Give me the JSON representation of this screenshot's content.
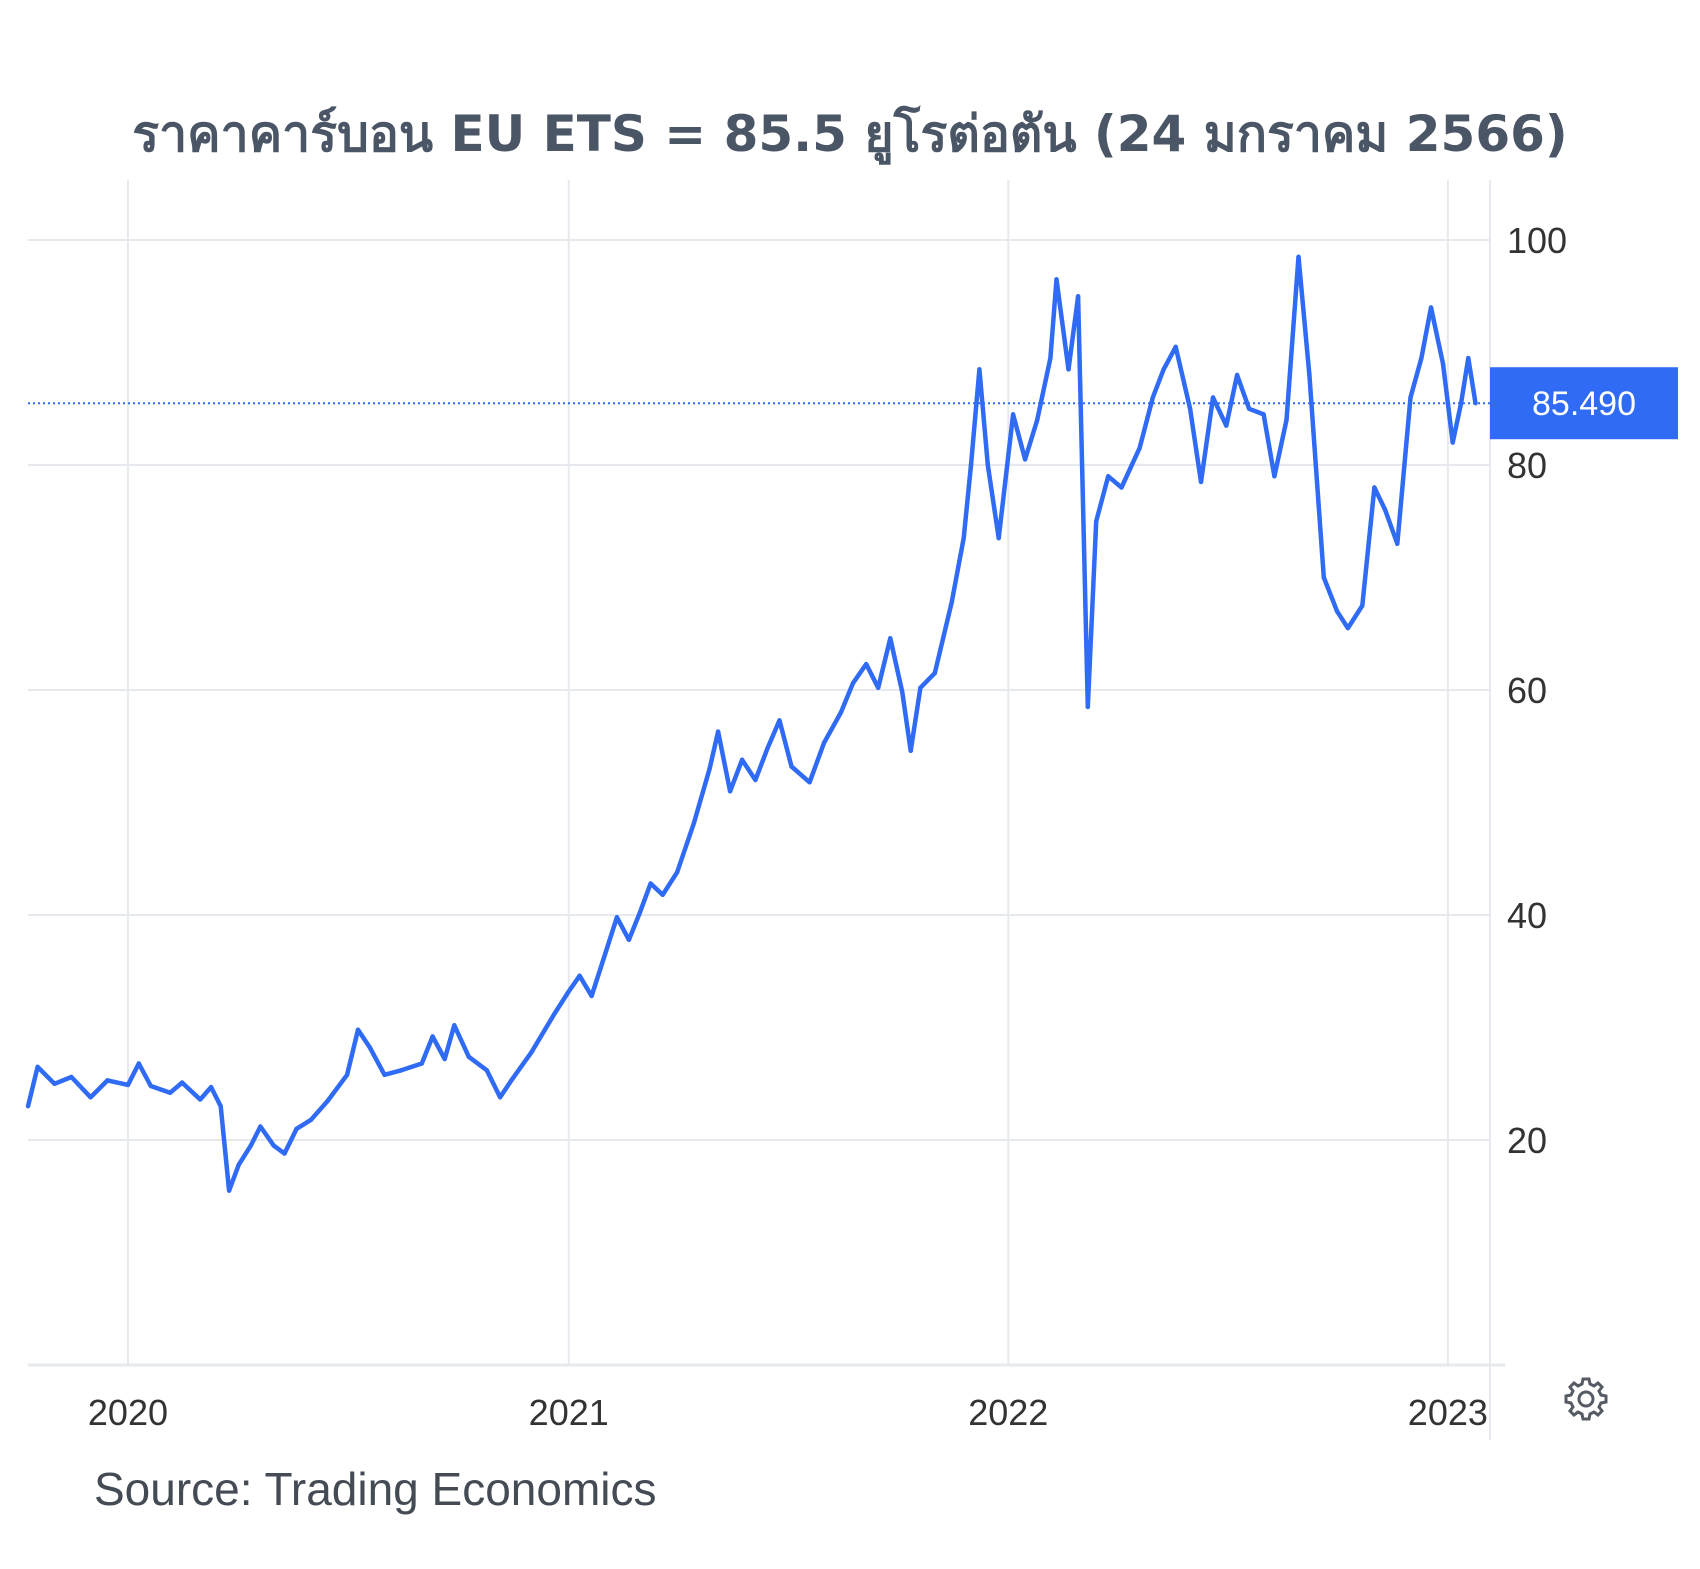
{
  "title": "ราคาคาร์บอน EU ETS = 85.5 ยูโรต่อตัน (24 มกราคม 2566)",
  "source": "Source: Trading Economics",
  "icons": {
    "settings": "gear-icon"
  },
  "colors": {
    "line": "#2f6bf5",
    "label_bg": "#2f6bf5",
    "grid": "#e6e9ee",
    "title": "#4a5566"
  },
  "chart_data": {
    "type": "line",
    "title": "ราคาคาร์บอน EU ETS = 85.5 ยูโรต่อตัน (24 มกราคม 2566)",
    "xlabel": "",
    "ylabel": "",
    "ylim": [
      0,
      100
    ],
    "xlim": [
      "2019-10-10",
      "2023-02-05"
    ],
    "y_ticks": [
      "20",
      "40",
      "60",
      "80",
      "100"
    ],
    "x_ticks": [
      {
        "date": "2020-01-01",
        "label": "2020"
      },
      {
        "date": "2021-01-01",
        "label": "2021"
      },
      {
        "date": "2022-01-01",
        "label": "2022"
      },
      {
        "date": "2023-01-01",
        "label": "2023"
      }
    ],
    "last_value": 85.49,
    "last_value_label": "85.490",
    "grid": true,
    "series": [
      {
        "points": [
          [
            "2019-10-10",
            23.0
          ],
          [
            "2019-10-18",
            26.5
          ],
          [
            "2019-11-01",
            25.0
          ],
          [
            "2019-11-15",
            25.6
          ],
          [
            "2019-12-01",
            23.8
          ],
          [
            "2019-12-15",
            25.3
          ],
          [
            "2020-01-01",
            24.9
          ],
          [
            "2020-01-10",
            26.8
          ],
          [
            "2020-01-20",
            24.8
          ],
          [
            "2020-02-05",
            24.2
          ],
          [
            "2020-02-15",
            25.1
          ],
          [
            "2020-03-01",
            23.6
          ],
          [
            "2020-03-10",
            24.7
          ],
          [
            "2020-03-18",
            23.0
          ],
          [
            "2020-03-25",
            15.5
          ],
          [
            "2020-04-02",
            17.8
          ],
          [
            "2020-04-12",
            19.5
          ],
          [
            "2020-04-20",
            21.2
          ],
          [
            "2020-05-01",
            19.5
          ],
          [
            "2020-05-10",
            18.8
          ],
          [
            "2020-05-20",
            21.0
          ],
          [
            "2020-06-01",
            21.8
          ],
          [
            "2020-06-15",
            23.5
          ],
          [
            "2020-07-01",
            25.8
          ],
          [
            "2020-07-10",
            29.8
          ],
          [
            "2020-07-20",
            28.2
          ],
          [
            "2020-08-01",
            25.8
          ],
          [
            "2020-08-15",
            26.2
          ],
          [
            "2020-09-01",
            26.8
          ],
          [
            "2020-09-10",
            29.2
          ],
          [
            "2020-09-20",
            27.2
          ],
          [
            "2020-09-28",
            30.2
          ],
          [
            "2020-10-10",
            27.4
          ],
          [
            "2020-10-25",
            26.2
          ],
          [
            "2020-11-05",
            23.8
          ],
          [
            "2020-11-15",
            25.4
          ],
          [
            "2020-12-01",
            27.8
          ],
          [
            "2020-12-20",
            31.2
          ],
          [
            "2021-01-01",
            33.2
          ],
          [
            "2021-01-10",
            34.6
          ],
          [
            "2021-01-20",
            32.8
          ],
          [
            "2021-02-01",
            36.8
          ],
          [
            "2021-02-10",
            39.8
          ],
          [
            "2021-02-20",
            37.8
          ],
          [
            "2021-03-01",
            40.2
          ],
          [
            "2021-03-10",
            42.8
          ],
          [
            "2021-03-20",
            41.8
          ],
          [
            "2021-04-01",
            43.8
          ],
          [
            "2021-04-15",
            48.2
          ],
          [
            "2021-04-28",
            53.0
          ],
          [
            "2021-05-05",
            56.3
          ],
          [
            "2021-05-15",
            51.0
          ],
          [
            "2021-05-25",
            53.8
          ],
          [
            "2021-06-05",
            52.0
          ],
          [
            "2021-06-15",
            54.8
          ],
          [
            "2021-06-25",
            57.3
          ],
          [
            "2021-07-05",
            53.2
          ],
          [
            "2021-07-20",
            51.8
          ],
          [
            "2021-08-01",
            55.3
          ],
          [
            "2021-08-15",
            58.0
          ],
          [
            "2021-08-25",
            60.6
          ],
          [
            "2021-09-05",
            62.3
          ],
          [
            "2021-09-15",
            60.2
          ],
          [
            "2021-09-25",
            64.6
          ],
          [
            "2021-10-05",
            59.8
          ],
          [
            "2021-10-12",
            54.6
          ],
          [
            "2021-10-20",
            60.2
          ],
          [
            "2021-11-01",
            61.5
          ],
          [
            "2021-11-15",
            67.8
          ],
          [
            "2021-11-25",
            73.5
          ],
          [
            "2021-12-01",
            80.0
          ],
          [
            "2021-12-08",
            88.5
          ],
          [
            "2021-12-15",
            80.0
          ],
          [
            "2021-12-24",
            73.5
          ],
          [
            "2022-01-05",
            84.5
          ],
          [
            "2022-01-15",
            80.5
          ],
          [
            "2022-01-25",
            84.0
          ],
          [
            "2022-02-05",
            89.5
          ],
          [
            "2022-02-10",
            96.5
          ],
          [
            "2022-02-20",
            88.5
          ],
          [
            "2022-02-28",
            95.0
          ],
          [
            "2022-03-08",
            58.5
          ],
          [
            "2022-03-15",
            75.0
          ],
          [
            "2022-03-25",
            79.0
          ],
          [
            "2022-04-05",
            78.0
          ],
          [
            "2022-04-20",
            81.5
          ],
          [
            "2022-05-01",
            86.0
          ],
          [
            "2022-05-10",
            88.5
          ],
          [
            "2022-05-20",
            90.5
          ],
          [
            "2022-06-01",
            85.0
          ],
          [
            "2022-06-10",
            78.5
          ],
          [
            "2022-06-20",
            86.0
          ],
          [
            "2022-07-01",
            83.5
          ],
          [
            "2022-07-10",
            88.0
          ],
          [
            "2022-07-20",
            85.0
          ],
          [
            "2022-08-01",
            84.5
          ],
          [
            "2022-08-10",
            79.0
          ],
          [
            "2022-08-20",
            84.0
          ],
          [
            "2022-08-30",
            98.5
          ],
          [
            "2022-09-08",
            88.0
          ],
          [
            "2022-09-20",
            70.0
          ],
          [
            "2022-10-01",
            67.0
          ],
          [
            "2022-10-10",
            65.5
          ],
          [
            "2022-10-22",
            67.5
          ],
          [
            "2022-11-01",
            78.0
          ],
          [
            "2022-11-10",
            76.0
          ],
          [
            "2022-11-20",
            73.0
          ],
          [
            "2022-12-01",
            86.0
          ],
          [
            "2022-12-10",
            89.5
          ],
          [
            "2022-12-18",
            94.0
          ],
          [
            "2022-12-28",
            89.0
          ],
          [
            "2023-01-05",
            82.0
          ],
          [
            "2023-01-12",
            85.5
          ],
          [
            "2023-01-18",
            89.5
          ],
          [
            "2023-01-24",
            85.49
          ]
        ]
      }
    ]
  }
}
